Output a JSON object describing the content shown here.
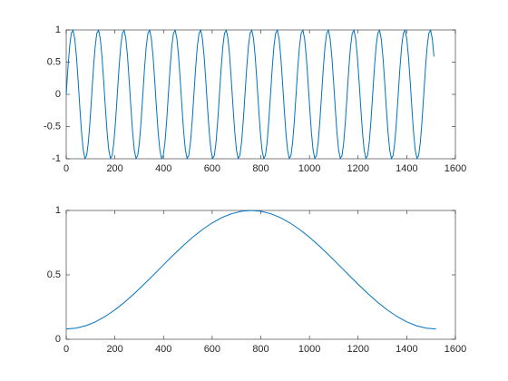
{
  "chart_data": [
    {
      "type": "line",
      "color": "#0072bd",
      "x": [
        0,
        7,
        14,
        21,
        28,
        35,
        42,
        49,
        56,
        63,
        70,
        77,
        84,
        91,
        98,
        105,
        112,
        119,
        126,
        133,
        140,
        147,
        154,
        161,
        168,
        175,
        182,
        189,
        196,
        203,
        210,
        217,
        224,
        231,
        238,
        245,
        252,
        259,
        266,
        273,
        280,
        287,
        294,
        301,
        308,
        315,
        322,
        329,
        336,
        343,
        350,
        357,
        364,
        371,
        378,
        385,
        392,
        399,
        406,
        413,
        420,
        427,
        434,
        441,
        448,
        455,
        462,
        469,
        476,
        483,
        490,
        497,
        504,
        511,
        518,
        525,
        532,
        539,
        546,
        553,
        560,
        567,
        574,
        581,
        588,
        595,
        602,
        609,
        616,
        623,
        630,
        637,
        644,
        651,
        658,
        665,
        672,
        679,
        686,
        693,
        700,
        707,
        714,
        721,
        728,
        735,
        742,
        749,
        756,
        763,
        770,
        777,
        784,
        791,
        798,
        805,
        812,
        819,
        826,
        833,
        840,
        847,
        854,
        861,
        868,
        875,
        882,
        889,
        896,
        903,
        910,
        917,
        924,
        931,
        938,
        945,
        952,
        959,
        966,
        973,
        980,
        987,
        994,
        1001,
        1008,
        1015,
        1022,
        1029,
        1036,
        1043,
        1050,
        1057,
        1064,
        1071,
        1078,
        1085,
        1092,
        1099,
        1106,
        1113,
        1120,
        1127,
        1134,
        1141,
        1148,
        1155,
        1162,
        1169,
        1176,
        1183,
        1190,
        1197,
        1204,
        1211,
        1218,
        1225,
        1232,
        1239,
        1246,
        1253,
        1260,
        1267,
        1274,
        1281,
        1288,
        1295,
        1302,
        1309,
        1316,
        1323,
        1330,
        1337,
        1344,
        1351,
        1358,
        1365,
        1372,
        1379,
        1386,
        1393,
        1400,
        1407,
        1414,
        1421,
        1428,
        1435,
        1442,
        1449,
        1456,
        1463,
        1470,
        1477,
        1484,
        1491,
        1498,
        1505,
        1512
      ],
      "values": [
        0,
        0.407,
        0.743,
        0.951,
        0.995,
        0.866,
        0.588,
        0.208,
        -0.208,
        -0.588,
        -0.866,
        -0.995,
        -0.951,
        -0.743,
        -0.407,
        0,
        0.407,
        0.743,
        0.951,
        0.995,
        0.866,
        0.588,
        0.208,
        -0.208,
        -0.588,
        -0.866,
        -0.995,
        -0.951,
        -0.743,
        -0.407,
        0,
        0.407,
        0.743,
        0.951,
        0.995,
        0.866,
        0.588,
        0.208,
        -0.208,
        -0.588,
        -0.866,
        -0.995,
        -0.951,
        -0.743,
        -0.407,
        0,
        0.407,
        0.743,
        0.951,
        0.995,
        0.866,
        0.588,
        0.208,
        -0.208,
        -0.588,
        -0.866,
        -0.995,
        -0.951,
        -0.743,
        -0.407,
        0,
        0.407,
        0.743,
        0.951,
        0.995,
        0.866,
        0.588,
        0.208,
        -0.208,
        -0.588,
        -0.866,
        -0.995,
        -0.951,
        -0.743,
        -0.407,
        0,
        0.407,
        0.743,
        0.951,
        0.995,
        0.866,
        0.588,
        0.208,
        -0.208,
        -0.588,
        -0.866,
        -0.995,
        -0.951,
        -0.743,
        -0.407,
        0,
        0.407,
        0.743,
        0.951,
        0.995,
        0.866,
        0.588,
        0.208,
        -0.208,
        -0.588,
        -0.866,
        -0.995,
        -0.951,
        -0.743,
        -0.407,
        0,
        0.407,
        0.743,
        0.951,
        0.995,
        0.866,
        0.588,
        0.208,
        -0.208,
        -0.588,
        -0.866,
        -0.995,
        -0.951,
        -0.743,
        -0.407,
        0,
        0.407,
        0.743,
        0.951,
        0.995,
        0.866,
        0.588,
        0.208,
        -0.208,
        -0.588,
        -0.866,
        -0.995,
        -0.951,
        -0.743,
        -0.407,
        0,
        0.407,
        0.743,
        0.951,
        0.995,
        0.866,
        0.588,
        0.208,
        -0.208,
        -0.588,
        -0.866,
        -0.995,
        -0.951,
        -0.743,
        -0.407,
        0,
        0.407,
        0.743,
        0.951,
        0.995,
        0.866,
        0.588,
        0.208,
        -0.208,
        -0.588,
        -0.866,
        -0.995,
        -0.951,
        -0.743,
        -0.407,
        0,
        0.407,
        0.743,
        0.951,
        0.995,
        0.866,
        0.588,
        0.208,
        -0.208,
        -0.588,
        -0.866,
        -0.995,
        -0.951,
        -0.743,
        -0.407,
        0,
        0.407,
        0.743,
        0.951,
        0.995,
        0.866,
        0.588,
        0.208,
        -0.208,
        -0.588,
        -0.866,
        -0.995,
        -0.951,
        -0.743,
        -0.407,
        0,
        0.407,
        0.743,
        0.951,
        0.995,
        0.866,
        0.588,
        0.208,
        -0.208,
        -0.588,
        -0.866,
        -0.995,
        -0.951,
        -0.743,
        -0.407,
        0,
        0.407,
        0.743,
        0.951,
        0.995,
        0.866,
        0.588
      ],
      "xlim": [
        0,
        1600
      ],
      "xticks": [
        0,
        200,
        400,
        600,
        800,
        1000,
        1200,
        1400,
        1600
      ],
      "ylim": [
        -1,
        1
      ],
      "yticks": [
        -1,
        -0.5,
        0,
        0.5,
        1
      ]
    },
    {
      "type": "line",
      "color": "#0072bd",
      "x": [
        0,
        40,
        80,
        120,
        160,
        200,
        240,
        280,
        320,
        360,
        400,
        440,
        480,
        520,
        560,
        600,
        640,
        680,
        720,
        760,
        800,
        840,
        880,
        920,
        960,
        1000,
        1040,
        1080,
        1120,
        1160,
        1200,
        1240,
        1280,
        1320,
        1360,
        1400,
        1440,
        1480,
        1520
      ],
      "values": [
        0.08,
        0.086,
        0.105,
        0.135,
        0.177,
        0.228,
        0.288,
        0.355,
        0.427,
        0.502,
        0.578,
        0.653,
        0.725,
        0.792,
        0.852,
        0.903,
        0.945,
        0.975,
        0.994,
        1,
        0.994,
        0.975,
        0.945,
        0.903,
        0.852,
        0.792,
        0.725,
        0.653,
        0.578,
        0.502,
        0.427,
        0.355,
        0.288,
        0.228,
        0.177,
        0.135,
        0.105,
        0.086,
        0.08
      ],
      "xlim": [
        0,
        1600
      ],
      "xticks": [
        0,
        200,
        400,
        600,
        800,
        1000,
        1200,
        1400,
        1600
      ],
      "ylim": [
        0,
        1
      ],
      "yticks": [
        0,
        0.5,
        1
      ]
    }
  ]
}
